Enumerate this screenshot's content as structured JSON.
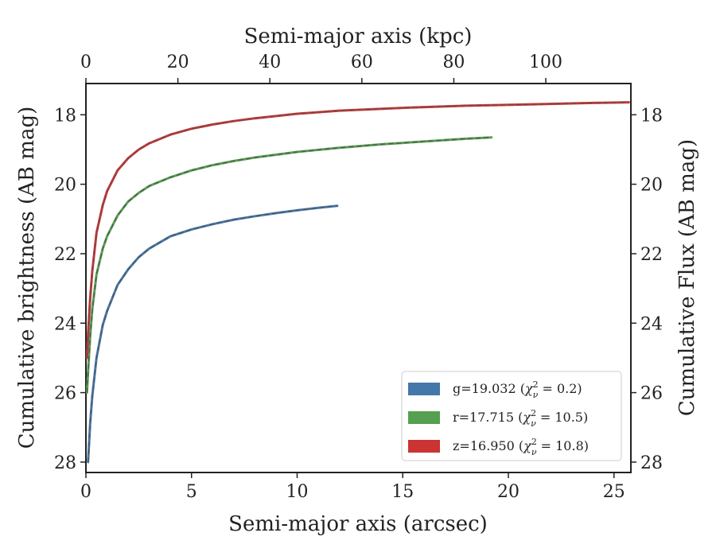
{
  "chart_data": {
    "type": "line",
    "xlabel": "Semi-major axis (arcsec)",
    "top_xlabel": "Semi-major axis (kpc)",
    "ylabel": "Cumulative brightness (AB mag)",
    "right_ylabel": "Cumulative Flux (AB mag)",
    "xlim": [
      0,
      25.8
    ],
    "top_xlim": [
      0,
      118.5
    ],
    "ylim": [
      28.3,
      17.1
    ],
    "x_ticks": [
      "0",
      "5",
      "10",
      "15",
      "20",
      "25"
    ],
    "top_x_ticks": [
      "0",
      "20",
      "40",
      "60",
      "80",
      "100"
    ],
    "y_ticks": [
      "18",
      "20",
      "22",
      "24",
      "26",
      "28"
    ],
    "right_y_ticks": [
      "18",
      "20",
      "22",
      "24",
      "26",
      "28"
    ],
    "y_inverted": true,
    "grid": false,
    "legend_position": "bottom-right",
    "series": [
      {
        "name": "g=19.032 (χ²ᵥ = 0.2)",
        "label_main": "g=19.032 (",
        "label_chi": "χ",
        "label_sup": "2",
        "label_sub": "ν",
        "label_rest": " = 0.2)",
        "color": "#4477aa",
        "x": [
          0.1,
          0.2,
          0.3,
          0.5,
          0.8,
          1.0,
          1.5,
          2.0,
          2.5,
          3.0,
          4.0,
          5.0,
          6.0,
          7.0,
          8.0,
          9.0,
          10.0,
          11.0,
          11.9
        ],
        "values": [
          28.0,
          26.9,
          26.1,
          25.0,
          24.05,
          23.65,
          22.9,
          22.45,
          22.1,
          21.85,
          21.5,
          21.3,
          21.15,
          21.02,
          20.92,
          20.83,
          20.75,
          20.68,
          20.62
        ]
      },
      {
        "name": "r=17.715 (χ²ᵥ = 10.5)",
        "label_main": "r=17.715 (",
        "label_chi": "χ",
        "label_sup": "2",
        "label_sub": "ν",
        "label_rest": " = 10.5)",
        "color": "#55a050",
        "x": [
          0.05,
          0.1,
          0.2,
          0.3,
          0.5,
          0.8,
          1.0,
          1.5,
          2.0,
          2.5,
          3.0,
          4.0,
          5.0,
          6.0,
          7.0,
          8.0,
          10.0,
          12.0,
          14.0,
          16.0,
          18.0,
          19.2
        ],
        "values": [
          26.0,
          25.4,
          24.4,
          23.6,
          22.6,
          21.85,
          21.5,
          20.9,
          20.5,
          20.25,
          20.05,
          19.8,
          19.6,
          19.45,
          19.33,
          19.23,
          19.07,
          18.95,
          18.85,
          18.77,
          18.69,
          18.65
        ]
      },
      {
        "name": "z=16.950 (χ²ᵥ = 10.8)",
        "label_main": "z=16.950 (",
        "label_chi": "χ",
        "label_sup": "2",
        "label_sub": "ν",
        "label_rest": " = 10.8)",
        "color": "#cc3333",
        "x": [
          0.05,
          0.1,
          0.2,
          0.3,
          0.5,
          0.8,
          1.0,
          1.5,
          2.0,
          2.5,
          3.0,
          4.0,
          5.0,
          6.0,
          7.0,
          8.0,
          10.0,
          12.0,
          15.0,
          18.0,
          21.0,
          24.0,
          25.7
        ],
        "values": [
          25.0,
          24.3,
          23.3,
          22.5,
          21.4,
          20.6,
          20.2,
          19.6,
          19.25,
          19.0,
          18.82,
          18.57,
          18.4,
          18.28,
          18.18,
          18.1,
          17.97,
          17.88,
          17.8,
          17.74,
          17.7,
          17.66,
          17.64
        ]
      }
    ],
    "model_line_style": "dashed gray overlay"
  }
}
